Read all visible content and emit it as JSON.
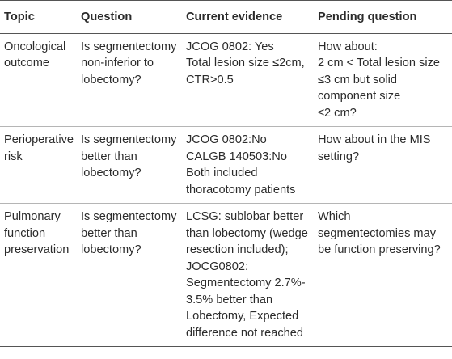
{
  "table": {
    "headers": [
      "Topic",
      "Question",
      "Current evidence",
      "Pending question"
    ],
    "rows": [
      {
        "topic": [
          "Oncological",
          "outcome"
        ],
        "question": [
          "Is segmentectomy",
          "non-inferior to",
          "lobectomy?"
        ],
        "evidence": [
          "JCOG 0802: Yes",
          "Total lesion size ≤2cm,",
          "CTR>0.5"
        ],
        "pending": [
          "How about:",
          "2 cm < Total lesion size",
          "≤3 cm but solid",
          "component size",
          "≤2 cm?"
        ]
      },
      {
        "topic": [
          "Perioperative",
          "risk"
        ],
        "question": [
          "Is segmentectomy",
          "better than",
          "lobectomy?"
        ],
        "evidence": [
          "JCOG 0802:No",
          "CALGB 140503:No",
          "Both included",
          "thoracotomy patients"
        ],
        "pending": [
          "How about in the MIS",
          "setting?"
        ]
      },
      {
        "topic": [
          "Pulmonary",
          "function",
          "preservation"
        ],
        "question": [
          "Is segmentectomy",
          "better than",
          "lobectomy?"
        ],
        "evidence": [
          "LCSG: sublobar better",
          "than lobectomy (wedge",
          "resection included);",
          "JOCG0802:",
          "Segmentectomy 2.7%-",
          "3.5% better than",
          "Lobectomy, Expected",
          "difference not reached"
        ],
        "pending": [
          "Which",
          "segmentectomies may",
          "be function preserving?"
        ]
      }
    ]
  }
}
